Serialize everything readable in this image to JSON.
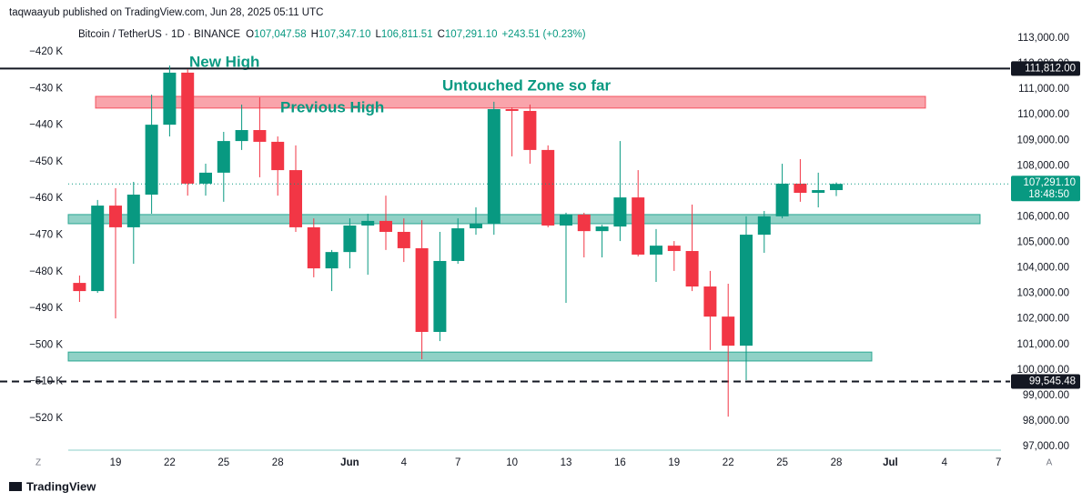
{
  "header": {
    "byline": "taqwaayub published on TradingView.com, Jun 28, 2025 05:11 UTC",
    "brand": "TradingView"
  },
  "chart_data": {
    "type": "candlestick",
    "title": "Bitcoin / TetherUS · 1D · BINANCE",
    "ohlc_legend": [
      {
        "key": "O",
        "value": "107,047.58"
      },
      {
        "key": "H",
        "value": "107,347.10"
      },
      {
        "key": "L",
        "value": "106,811.51"
      },
      {
        "key": "C",
        "value": "107,291.10"
      }
    ],
    "change": "+243.51 (+0.23%)",
    "categories": [
      null,
      null,
      "19",
      null,
      null,
      "22",
      null,
      null,
      "25",
      null,
      null,
      "28",
      null,
      null,
      null,
      "Jun",
      null,
      null,
      "4",
      null,
      null,
      "7",
      null,
      null,
      "10",
      null,
      null,
      "13",
      null,
      null,
      "16",
      null,
      null,
      "19",
      null,
      null,
      "22",
      null,
      null,
      "25",
      null,
      null,
      "28",
      null,
      null,
      "Jul",
      null,
      null,
      "4",
      null,
      null,
      "7"
    ],
    "open": [
      103410,
      103090,
      106440,
      105590,
      106870,
      109610,
      111650,
      107300,
      107730,
      108970,
      109400,
      108940,
      107830,
      105590,
      103980,
      104620,
      105660,
      105840,
      105410,
      104770,
      101490,
      104270,
      105550,
      105730,
      110220,
      110150,
      108620,
      105660,
      106090,
      105440,
      105620,
      106760,
      104520,
      104870,
      104660,
      103270,
      102090,
      100950,
      105300,
      106020,
      107300,
      106940,
      107047.58,
      null,
      null,
      null,
      null,
      null,
      null,
      null,
      null,
      null
    ],
    "high": [
      103700,
      106660,
      107120,
      107370,
      110790,
      111930,
      111790,
      108080,
      109330,
      110400,
      110680,
      109150,
      108800,
      105940,
      104700,
      105940,
      106120,
      106830,
      105940,
      105870,
      105410,
      105940,
      106370,
      110510,
      110290,
      110400,
      108800,
      106160,
      106160,
      105690,
      108970,
      107830,
      105520,
      105050,
      106480,
      103880,
      103380,
      106020,
      106230,
      108080,
      108260,
      107730,
      107347.1,
      null,
      null,
      null,
      null,
      null,
      null,
      null,
      null,
      null
    ],
    "low": [
      102665,
      103020,
      102020,
      104160,
      106120,
      109150,
      106830,
      106830,
      106590,
      108620,
      107550,
      106830,
      105410,
      103630,
      103090,
      103980,
      103730,
      104700,
      104230,
      100420,
      101130,
      104160,
      105300,
      105300,
      108370,
      108080,
      105590,
      102630,
      104410,
      104410,
      105050,
      104450,
      103450,
      103880,
      103090,
      100780,
      98170,
      99600,
      104590,
      105940,
      106590,
      106370,
      106811.51,
      null,
      null,
      null,
      null,
      null,
      null,
      null,
      null,
      null
    ],
    "close": [
      103090,
      106440,
      105590,
      106870,
      109610,
      111650,
      107300,
      107730,
      108970,
      109400,
      108940,
      107830,
      105590,
      103980,
      104620,
      105660,
      105840,
      105410,
      104770,
      101490,
      104270,
      105550,
      105730,
      110220,
      110150,
      108620,
      105660,
      106090,
      105440,
      105620,
      106760,
      104520,
      104870,
      104660,
      103270,
      102090,
      100950,
      105300,
      106020,
      107300,
      106940,
      107047.58,
      107291.1,
      null,
      null,
      null,
      null,
      null,
      null,
      null,
      null,
      null
    ],
    "up_color": "#089981",
    "down_color": "#f23645",
    "ylim": [
      96856,
      113499
    ],
    "yticks": [
      {
        "value": 97000,
        "label": "97,000.00"
      },
      {
        "value": 98000,
        "label": "98,000.00"
      },
      {
        "value": 99000,
        "label": "99,000.00"
      },
      {
        "value": 100000,
        "label": "100,000.00"
      },
      {
        "value": 101000,
        "label": "101,000.00"
      },
      {
        "value": 102000,
        "label": "102,000.00"
      },
      {
        "value": 103000,
        "label": "103,000.00"
      },
      {
        "value": 104000,
        "label": "104,000.00"
      },
      {
        "value": 105000,
        "label": "105,000.00"
      },
      {
        "value": 106000,
        "label": "106,000.00"
      },
      {
        "value": 107000,
        "label": "107,000.00"
      },
      {
        "value": 108000,
        "label": "108,000.00"
      },
      {
        "value": 109000,
        "label": "109,000.00"
      },
      {
        "value": 110000,
        "label": "110,000.00"
      },
      {
        "value": 111000,
        "label": "111,000.00"
      },
      {
        "value": 112000,
        "label": "112,000.00"
      },
      {
        "value": 113000,
        "label": "113,000.00"
      }
    ],
    "y2lim": [
      -528700,
      -412800
    ],
    "y2ticks": [
      {
        "value": -420000,
        "label": "−420 K"
      },
      {
        "value": -430000,
        "label": "−430 K"
      },
      {
        "value": -440000,
        "label": "−440 K"
      },
      {
        "value": -450000,
        "label": "−450 K"
      },
      {
        "value": -460000,
        "label": "−460 K"
      },
      {
        "value": -470000,
        "label": "−470 K"
      },
      {
        "value": -480000,
        "label": "−480 K"
      },
      {
        "value": -490000,
        "label": "−490 K"
      },
      {
        "value": -500000,
        "label": "−500 K"
      },
      {
        "value": -510000,
        "label": "−510 K"
      },
      {
        "value": -520000,
        "label": "−520 K"
      }
    ],
    "grid": false,
    "levels": [
      {
        "value": 111812,
        "label": "111,812.00",
        "style": "solid",
        "color": "#131722"
      },
      {
        "value": 99545.48,
        "label": "99,545.48",
        "style": "dashed",
        "color": "#131722"
      }
    ],
    "last_price_label": "107,291.10",
    "countdown": "18:48:50",
    "zones": [
      {
        "top": 110720,
        "bottom": 110260,
        "color": "#f23645"
      },
      {
        "top": 106090,
        "bottom": 105730,
        "color": "#089981"
      },
      {
        "top": 100700,
        "bottom": 100350,
        "color": "#089981"
      }
    ],
    "annotations": [
      "New High",
      "Untouched Zone so far",
      "Previous High"
    ],
    "scale_buttons": [
      "Z",
      "A"
    ]
  }
}
